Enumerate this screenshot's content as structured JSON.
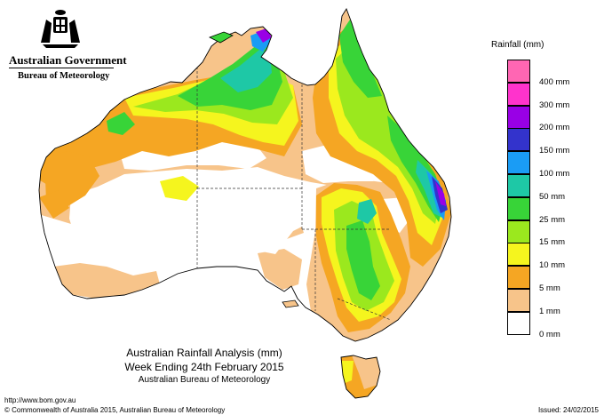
{
  "header": {
    "government": "Australian Government",
    "bureau": "Bureau of Meteorology"
  },
  "icons": {
    "crest": "coat-of-arms-icon"
  },
  "legend": {
    "title": "Rainfall (mm)",
    "classes": [
      {
        "label": "",
        "color": "#ff66b3"
      },
      {
        "label": "400 mm",
        "color": "#ff33cc"
      },
      {
        "label": "300 mm",
        "color": "#9900e6"
      },
      {
        "label": "200 mm",
        "color": "#3333cc"
      },
      {
        "label": "150 mm",
        "color": "#1a9cf5"
      },
      {
        "label": "100 mm",
        "color": "#1ec8a6"
      },
      {
        "label": "50 mm",
        "color": "#38d438"
      },
      {
        "label": "25 mm",
        "color": "#9be81e"
      },
      {
        "label": "15 mm",
        "color": "#f5f51e"
      },
      {
        "label": "10 mm",
        "color": "#f5a623"
      },
      {
        "label": "5 mm",
        "color": "#f7c48a"
      },
      {
        "label": "1 mm",
        "color": "#ffffff"
      },
      {
        "label": "0 mm",
        "color": ""
      }
    ]
  },
  "caption": {
    "line1": "Australian Rainfall Analysis (mm)",
    "line2": "Week Ending 24th February 2015",
    "line3": "Australian Bureau of Meteorology"
  },
  "footer": {
    "url": "http://www.bom.gov.au",
    "copyright": "© Commonwealth of Australia 2015, Australian Bureau of Meteorology",
    "issued": "Issued: 24/02/2015"
  },
  "colors": {
    "none": "#ffffff",
    "c1": "#f7c48a",
    "c5": "#f5a623",
    "c10": "#f5f51e",
    "c15": "#9be81e",
    "c25": "#38d438",
    "c50": "#1ec8a6",
    "c100": "#1a9cf5",
    "c150": "#3333cc",
    "c200": "#9900e6",
    "outline": "#000000"
  }
}
